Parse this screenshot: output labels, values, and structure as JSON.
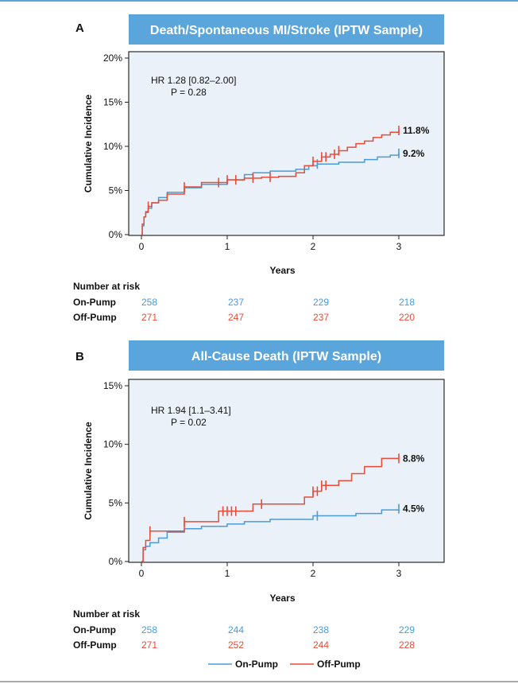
{
  "colors": {
    "on_pump": "#4a9bd8",
    "off_pump": "#e84c38",
    "title_bg": "#5aa5db",
    "plot_bg": "#eaf1f9",
    "border": "#2b2b2b"
  },
  "risk_header": "Number at risk",
  "legend": {
    "on_pump": "On-Pump",
    "off_pump": "Off-Pump"
  },
  "chart_data": [
    {
      "type": "line",
      "panel": "A",
      "title": "Death/Spontaneous MI/Stroke (IPTW Sample)",
      "xlabel": "Years",
      "ylabel": "Cumulative Incidence",
      "xlim": [
        0,
        3
      ],
      "ylim": [
        0,
        20
      ],
      "x_ticks": [
        "0",
        "1",
        "2",
        "3"
      ],
      "y_ticks": [
        "0%",
        "5%",
        "10%",
        "15%",
        "20%"
      ],
      "hr_text": "HR 1.28 [0.82–2.00]",
      "p_text": "P = 0.28",
      "series": [
        {
          "name": "On-Pump",
          "end_label": "9.2%",
          "x": [
            0,
            0.01,
            0.03,
            0.05,
            0.08,
            0.12,
            0.2,
            0.3,
            0.5,
            0.7,
            1.0,
            1.2,
            1.3,
            1.5,
            1.8,
            1.95,
            2.05,
            2.3,
            2.6,
            2.75,
            2.9,
            3.0
          ],
          "y": [
            0,
            1.0,
            2.0,
            2.5,
            3.0,
            3.6,
            4.2,
            4.8,
            5.3,
            5.7,
            6.2,
            6.8,
            7.0,
            7.2,
            7.4,
            7.8,
            8.0,
            8.2,
            8.5,
            8.8,
            9.0,
            9.2
          ],
          "censor_x": [
            2.05,
            3.0
          ]
        },
        {
          "name": "Off-Pump",
          "end_label": "11.8%",
          "x": [
            0,
            0.01,
            0.03,
            0.05,
            0.08,
            0.12,
            0.2,
            0.3,
            0.5,
            0.7,
            1.0,
            1.2,
            1.4,
            1.6,
            1.8,
            1.9,
            2.0,
            2.1,
            2.2,
            2.3,
            2.4,
            2.5,
            2.6,
            2.7,
            2.8,
            2.9,
            3.0
          ],
          "y": [
            0,
            1.2,
            2.0,
            2.6,
            3.2,
            3.6,
            3.9,
            4.6,
            5.4,
            5.9,
            6.2,
            6.4,
            6.5,
            6.6,
            7.0,
            7.8,
            8.3,
            8.8,
            9.1,
            9.5,
            9.9,
            10.3,
            10.6,
            11.0,
            11.3,
            11.6,
            11.8
          ],
          "censor_x": [
            0.08,
            0.5,
            0.9,
            1.0,
            1.1,
            1.3,
            1.5,
            2.0,
            2.1,
            2.15,
            2.25,
            2.3,
            3.0
          ]
        }
      ],
      "risk_table": {
        "x": [
          0,
          1,
          2,
          3
        ],
        "on_pump": [
          "258",
          "237",
          "229",
          "218"
        ],
        "off_pump": [
          "271",
          "247",
          "237",
          "220"
        ]
      }
    },
    {
      "type": "line",
      "panel": "B",
      "title": "All-Cause Death (IPTW Sample)",
      "xlabel": "Years",
      "ylabel": "Cumulative Incidence",
      "xlim": [
        0,
        3
      ],
      "ylim": [
        0,
        15
      ],
      "x_ticks": [
        "0",
        "1",
        "2",
        "3"
      ],
      "y_ticks": [
        "0%",
        "5%",
        "10%",
        "15%"
      ],
      "hr_text": "HR 1.94 [1.1–3.41]",
      "p_text": "P = 0.02",
      "series": [
        {
          "name": "On-Pump",
          "end_label": "4.5%",
          "x": [
            0,
            0.02,
            0.05,
            0.1,
            0.2,
            0.3,
            0.5,
            0.7,
            1.0,
            1.2,
            1.5,
            2.0,
            2.5,
            2.8,
            3.0
          ],
          "y": [
            0,
            1.0,
            1.3,
            1.6,
            2.0,
            2.5,
            2.8,
            3.0,
            3.2,
            3.4,
            3.6,
            3.9,
            4.1,
            4.4,
            4.5
          ],
          "censor_x": [
            2.05,
            3.0
          ]
        },
        {
          "name": "Off-Pump",
          "end_label": "8.8%",
          "x": [
            0,
            0.02,
            0.05,
            0.1,
            0.5,
            0.9,
            1.3,
            1.9,
            2.0,
            2.1,
            2.3,
            2.45,
            2.6,
            2.8,
            3.0
          ],
          "y": [
            0,
            1.2,
            1.8,
            2.6,
            3.4,
            4.3,
            4.9,
            5.5,
            6.0,
            6.5,
            6.9,
            7.5,
            8.1,
            8.8,
            8.8
          ],
          "censor_x": [
            0.1,
            0.5,
            0.95,
            1.0,
            1.05,
            1.1,
            1.4,
            2.0,
            2.05,
            2.1,
            2.15,
            3.0
          ]
        }
      ],
      "risk_table": {
        "x": [
          0,
          1,
          2,
          3
        ],
        "on_pump": [
          "258",
          "244",
          "238",
          "229"
        ],
        "off_pump": [
          "271",
          "252",
          "244",
          "228"
        ]
      }
    }
  ]
}
